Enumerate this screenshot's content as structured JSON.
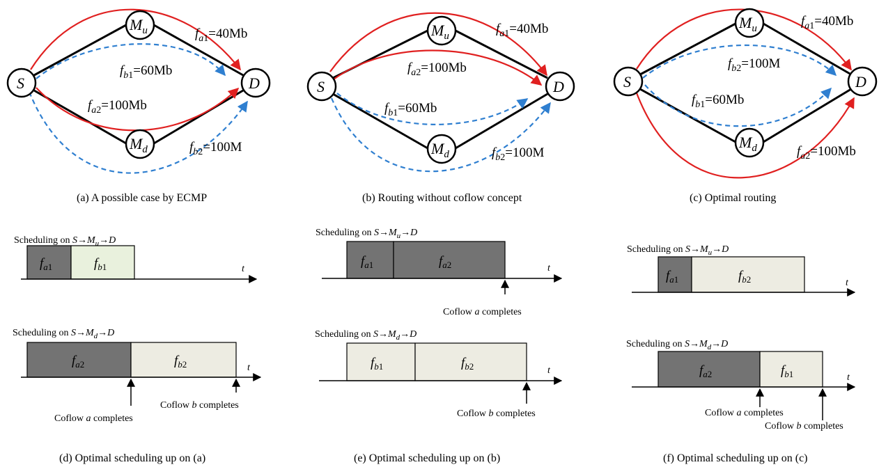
{
  "nodes": {
    "s": "S",
    "d": "D",
    "mu_base": "M",
    "mu_sub": "u",
    "md_base": "M",
    "md_sub": "d"
  },
  "flows": {
    "fa1": {
      "f": "f",
      "sub": "a",
      "num": "1",
      "val": "=40Mb"
    },
    "fb1": {
      "f": "f",
      "sub": "b",
      "num": "1",
      "val": "=60Mb"
    },
    "fa2": {
      "f": "f",
      "sub": "a",
      "num": "2",
      "val": "=100Mb"
    },
    "fb2": {
      "f": "f",
      "sub": "b",
      "num": "2",
      "val": "=100M"
    }
  },
  "panel_c_fb2_val": "=100M",
  "panel_c_fa2_val": "=100Mb",
  "captions": {
    "a": "(a)  A possible case by ECMP",
    "b": "(b)  Routing without coflow concept",
    "c": "(c)  Optimal routing",
    "d": "(d)  Optimal scheduling up on (a)",
    "e": "(e)  Optimal scheduling up on (b)",
    "f": "(f)  Optimal scheduling up on (c)"
  },
  "scheduling": {
    "prefix": "Scheduling on ",
    "s": "S",
    "arrow": "→",
    "m": "M",
    "u": "u",
    "d_sub": "d",
    "d": "D"
  },
  "time_label": "t",
  "completes": {
    "a_prefix": "Coflow ",
    "a_letter": "a",
    "b_letter": "b",
    "suffix": " completes"
  },
  "colors": {
    "red": "#e02020",
    "blue": "#2f7fd0",
    "dark_block": "#737373",
    "light_block": "#edece2",
    "light_green_block": "#e9f1dd"
  }
}
